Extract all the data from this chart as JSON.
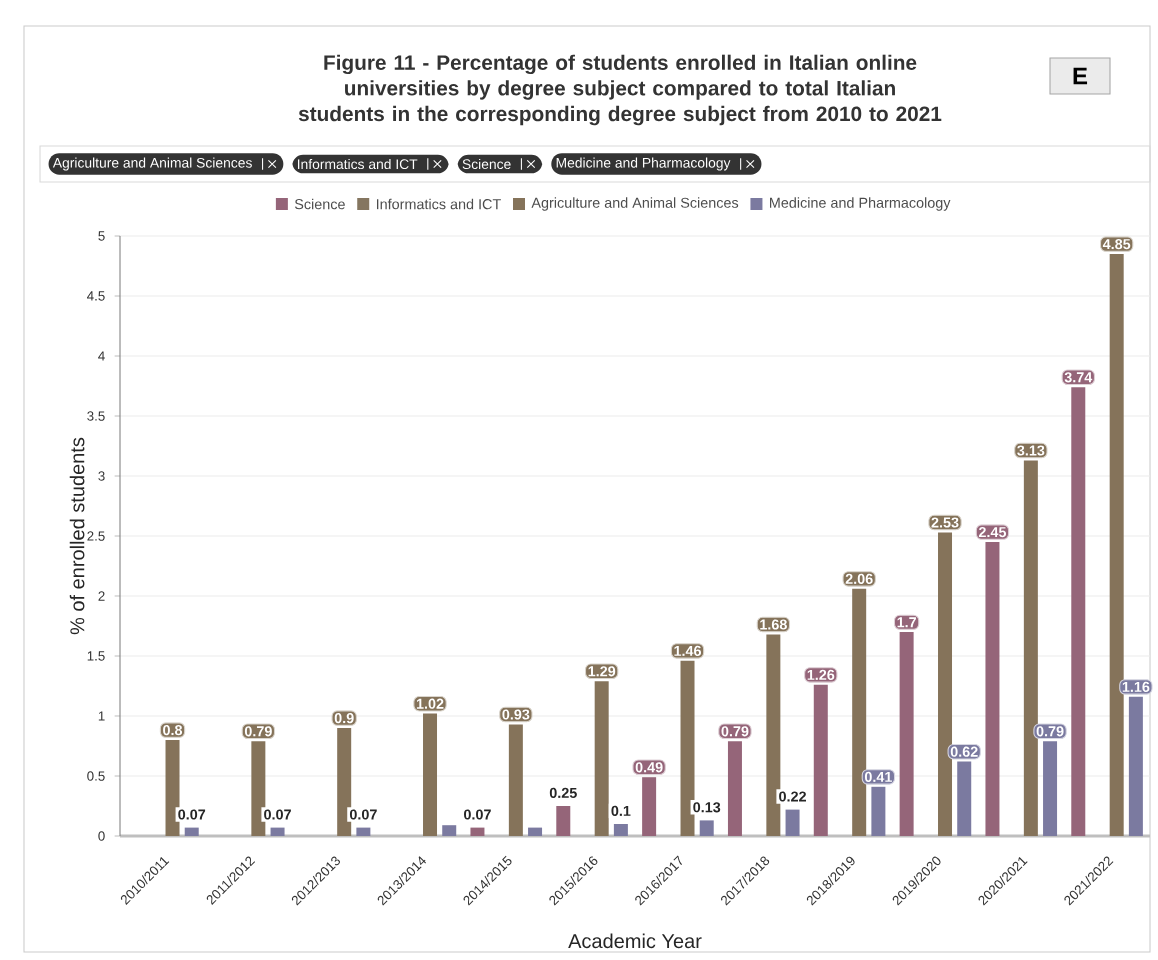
{
  "chart_data": {
    "type": "bar",
    "title": "Figure 11 - Percentage of students enrolled in Italian online universities by degree subject compared to total Italian students in the corresponding degree subject from 2010 to 2021",
    "annotations": [
      "Agriculture and Animal Sciences",
      "Informatics and ICT",
      "Science",
      "Medicine and Pharmacology",
      "E"
    ],
    "xlabel": "Academic Year",
    "ylabel": "% of enrolled students",
    "categories": [
      "2010/2011",
      "2011/2012",
      "2012/2013",
      "2013/2014",
      "2014/2015",
      "2015/2016",
      "2016/2017",
      "2017/2018",
      "2018/2019",
      "2019/2020",
      "2020/2021",
      "2021/2022"
    ],
    "series": [
      {
        "name": "Science",
        "color": "#956579",
        "values": [
          null,
          null,
          null,
          null,
          0.07,
          0.25,
          0.49,
          0.79,
          1.26,
          1.7,
          2.45,
          3.74
        ],
        "value_labels": [
          null,
          null,
          null,
          null,
          "0.07",
          "0.25",
          "0.49",
          "0.79",
          "1.26",
          "1.7",
          "2.45",
          "3.74"
        ]
      },
      {
        "name": "Informatics and ICT",
        "color": "#857660",
        "values": [
          null,
          null,
          null,
          null,
          null,
          null,
          null,
          null,
          null,
          null,
          null,
          null
        ]
      },
      {
        "name": "Agriculture and Animal Sciences",
        "color": "#85735a",
        "values": [
          0.8,
          0.79,
          0.9,
          1.02,
          0.93,
          1.29,
          1.46,
          1.68,
          2.06,
          2.53,
          3.13,
          4.85
        ],
        "value_labels": [
          "0.8",
          "0.79",
          "0.9",
          "1.02",
          "0.93",
          "1.29",
          "1.46",
          "1.68",
          "2.06",
          "2.53",
          "3.13",
          "4.85"
        ]
      },
      {
        "name": "Medicine and Pharmacology",
        "color": "#7b7aa0",
        "values": [
          0.07,
          0.07,
          0.07,
          0.09,
          0.07,
          0.1,
          0.13,
          0.22,
          0.41,
          0.62,
          0.79,
          1.16
        ],
        "value_labels": [
          "0.07",
          "0.07",
          "0.07",
          null,
          null,
          "0.1",
          "0.13",
          "0.22",
          "0.41",
          "0.62",
          "0.79",
          "1.16"
        ]
      }
    ],
    "ylim": [
      0,
      5
    ],
    "yticks": [
      0,
      0.5,
      1,
      1.5,
      2,
      2.5,
      3,
      3.5,
      4,
      4.5,
      5
    ],
    "grid": "y",
    "legend": "top"
  }
}
